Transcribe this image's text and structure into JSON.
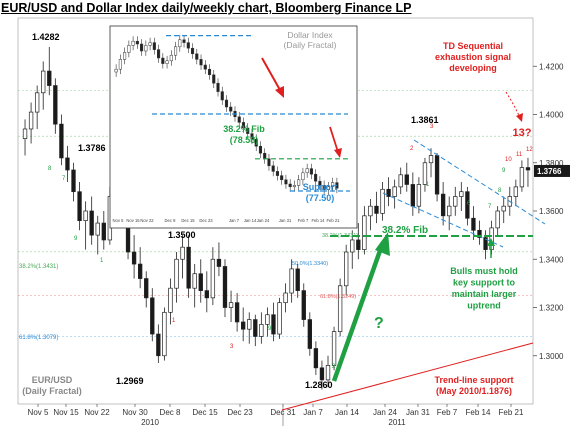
{
  "title": "EUR/USD and Dollar Index daily/weekly chart, Bloomberg Finance LP",
  "chart_data": {
    "type": "candlestick",
    "ylim": [
      1.28,
      1.44
    ],
    "ticks_y": [
      "1.4200",
      "1.4000",
      "1.3800",
      "1.3600",
      "1.3400",
      "1.3200",
      "1.3000"
    ],
    "x_ticks": [
      "Nov 5",
      "Nov 15",
      "Nov 22",
      "Nov 30",
      "Dec 8",
      "Dec 15",
      "Dec 23",
      "Dec 31",
      "Jan 7",
      "Jan 14",
      "Jan 24",
      "Jan 31",
      "Feb 7",
      "Feb 14",
      "Feb 21"
    ],
    "year_labels": [
      "2010",
      "2011"
    ],
    "last_price": "1.3766",
    "price_labels": {
      "high1": "1.4282",
      "p2": "1.3786",
      "p3": "1.3500",
      "low1": "1.2969",
      "low2": "1.2860",
      "high2": "1.3861"
    },
    "fib_levels": [
      "38.2%(1.3431)",
      "61.8%(1.3249)",
      "50.0%(1.3340)",
      "50.0%(1.3379)",
      "61.8%(1.3240)"
    ],
    "fib_label_left": [
      "38.2%(1.3431)",
      "61.8%(1.3079)"
    ],
    "annotations": {
      "td_sequential": [
        "TD Sequential",
        "exhaustion signal",
        "developing"
      ],
      "count_13": "13?",
      "fib_382": "38.2% Fib",
      "bulls": [
        "Bulls must hold",
        "key support to",
        "maintain larger",
        "uptrend"
      ],
      "question": "?",
      "trendline": [
        "Trend-line support",
        "(May 2010/1.1876)"
      ],
      "bottom_left": [
        "EUR/USD",
        "(Daily Fractal)"
      ]
    },
    "inset": {
      "title": [
        "Dollar Index",
        "(Daily Fractal)"
      ],
      "fib": [
        "38.2% Fib",
        "(78.58)"
      ],
      "support": [
        "Support",
        "(77.50)"
      ],
      "x_ticks": [
        "Nov 5",
        "Nov 15",
        "Nov 22",
        "Dec 8",
        "Dec 15",
        "Dec 23",
        "Jan 7",
        "Jan 14",
        "Jan 24",
        "Jan 31",
        "Feb 7",
        "Feb 14",
        "Feb 21"
      ]
    },
    "series": [
      {
        "x": "Oct 25",
        "o": 1.39,
        "h": 1.398,
        "l": 1.383,
        "c": 1.394
      },
      {
        "x": "Oct 27",
        "o": 1.394,
        "h": 1.405,
        "l": 1.388,
        "c": 1.401
      },
      {
        "x": "Oct 29",
        "o": 1.401,
        "h": 1.412,
        "l": 1.394,
        "c": 1.409
      },
      {
        "x": "Nov 1",
        "o": 1.409,
        "h": 1.422,
        "l": 1.402,
        "c": 1.418
      },
      {
        "x": "Nov 4",
        "o": 1.418,
        "h": 1.428,
        "l": 1.408,
        "c": 1.412
      },
      {
        "x": "Nov 5",
        "o": 1.412,
        "h": 1.415,
        "l": 1.392,
        "c": 1.396
      },
      {
        "x": "Nov 8",
        "o": 1.396,
        "h": 1.4,
        "l": 1.379,
        "c": 1.382
      },
      {
        "x": "Nov 9",
        "o": 1.382,
        "h": 1.387,
        "l": 1.372,
        "c": 1.377
      },
      {
        "x": "Nov 10",
        "o": 1.377,
        "h": 1.38,
        "l": 1.364,
        "c": 1.368
      },
      {
        "x": "Nov 11",
        "o": 1.368,
        "h": 1.372,
        "l": 1.352,
        "c": 1.356
      },
      {
        "x": "Nov 12",
        "o": 1.356,
        "h": 1.364,
        "l": 1.344,
        "c": 1.36
      },
      {
        "x": "Nov 15",
        "o": 1.36,
        "h": 1.366,
        "l": 1.346,
        "c": 1.35
      },
      {
        "x": "Nov 16",
        "o": 1.35,
        "h": 1.358,
        "l": 1.342,
        "c": 1.355
      },
      {
        "x": "Nov 17",
        "o": 1.355,
        "h": 1.36,
        "l": 1.344,
        "c": 1.348
      },
      {
        "x": "Nov 18",
        "o": 1.348,
        "h": 1.37,
        "l": 1.346,
        "c": 1.366
      },
      {
        "x": "Nov 19",
        "o": 1.366,
        "h": 1.375,
        "l": 1.36,
        "c": 1.371
      },
      {
        "x": "Nov 22",
        "o": 1.371,
        "h": 1.379,
        "l": 1.362,
        "c": 1.365
      },
      {
        "x": "Nov 23",
        "o": 1.365,
        "h": 1.368,
        "l": 1.34,
        "c": 1.343
      },
      {
        "x": "Nov 24",
        "o": 1.343,
        "h": 1.35,
        "l": 1.332,
        "c": 1.338
      },
      {
        "x": "Nov 25",
        "o": 1.338,
        "h": 1.345,
        "l": 1.328,
        "c": 1.332
      },
      {
        "x": "Nov 26",
        "o": 1.332,
        "h": 1.335,
        "l": 1.32,
        "c": 1.324
      },
      {
        "x": "Nov 29",
        "o": 1.324,
        "h": 1.328,
        "l": 1.306,
        "c": 1.309
      },
      {
        "x": "Nov 30",
        "o": 1.309,
        "h": 1.313,
        "l": 1.297,
        "c": 1.3
      },
      {
        "x": "Dec 1",
        "o": 1.3,
        "h": 1.32,
        "l": 1.298,
        "c": 1.318
      },
      {
        "x": "Dec 2",
        "o": 1.318,
        "h": 1.332,
        "l": 1.313,
        "c": 1.328
      },
      {
        "x": "Dec 3",
        "o": 1.328,
        "h": 1.343,
        "l": 1.322,
        "c": 1.34
      },
      {
        "x": "Dec 6",
        "o": 1.34,
        "h": 1.35,
        "l": 1.332,
        "c": 1.345
      },
      {
        "x": "Dec 7",
        "o": 1.345,
        "h": 1.35,
        "l": 1.324,
        "c": 1.328
      },
      {
        "x": "Dec 8",
        "o": 1.328,
        "h": 1.338,
        "l": 1.32,
        "c": 1.334
      },
      {
        "x": "Dec 9",
        "o": 1.334,
        "h": 1.34,
        "l": 1.322,
        "c": 1.327
      },
      {
        "x": "Dec 10",
        "o": 1.327,
        "h": 1.335,
        "l": 1.318,
        "c": 1.324
      },
      {
        "x": "Dec 13",
        "o": 1.324,
        "h": 1.345,
        "l": 1.321,
        "c": 1.34
      },
      {
        "x": "Dec 14",
        "o": 1.34,
        "h": 1.347,
        "l": 1.333,
        "c": 1.337
      },
      {
        "x": "Dec 15",
        "o": 1.337,
        "h": 1.34,
        "l": 1.316,
        "c": 1.32
      },
      {
        "x": "Dec 16",
        "o": 1.32,
        "h": 1.327,
        "l": 1.314,
        "c": 1.322
      },
      {
        "x": "Dec 17",
        "o": 1.322,
        "h": 1.326,
        "l": 1.31,
        "c": 1.314
      },
      {
        "x": "Dec 20",
        "o": 1.314,
        "h": 1.32,
        "l": 1.306,
        "c": 1.311
      },
      {
        "x": "Dec 21",
        "o": 1.311,
        "h": 1.318,
        "l": 1.305,
        "c": 1.315
      },
      {
        "x": "Dec 22",
        "o": 1.315,
        "h": 1.317,
        "l": 1.304,
        "c": 1.308
      },
      {
        "x": "Dec 23",
        "o": 1.308,
        "h": 1.318,
        "l": 1.305,
        "c": 1.313
      },
      {
        "x": "Dec 27",
        "o": 1.313,
        "h": 1.32,
        "l": 1.308,
        "c": 1.317
      },
      {
        "x": "Dec 28",
        "o": 1.317,
        "h": 1.322,
        "l": 1.306,
        "c": 1.309
      },
      {
        "x": "Dec 29",
        "o": 1.309,
        "h": 1.324,
        "l": 1.307,
        "c": 1.322
      },
      {
        "x": "Dec 30",
        "o": 1.322,
        "h": 1.33,
        "l": 1.318,
        "c": 1.326
      },
      {
        "x": "Dec 31",
        "o": 1.326,
        "h": 1.34,
        "l": 1.322,
        "c": 1.336
      },
      {
        "x": "Jan 3",
        "o": 1.336,
        "h": 1.338,
        "l": 1.324,
        "c": 1.327
      },
      {
        "x": "Jan 4",
        "o": 1.327,
        "h": 1.33,
        "l": 1.312,
        "c": 1.315
      },
      {
        "x": "Jan 5",
        "o": 1.315,
        "h": 1.318,
        "l": 1.3,
        "c": 1.303
      },
      {
        "x": "Jan 6",
        "o": 1.303,
        "h": 1.306,
        "l": 1.292,
        "c": 1.295
      },
      {
        "x": "Jan 7",
        "o": 1.295,
        "h": 1.298,
        "l": 1.286,
        "c": 1.29
      },
      {
        "x": "Jan 10",
        "o": 1.29,
        "h": 1.3,
        "l": 1.287,
        "c": 1.296
      },
      {
        "x": "Jan 11",
        "o": 1.296,
        "h": 1.312,
        "l": 1.294,
        "c": 1.31
      },
      {
        "x": "Jan 12",
        "o": 1.31,
        "h": 1.332,
        "l": 1.308,
        "c": 1.329
      },
      {
        "x": "Jan 13",
        "o": 1.329,
        "h": 1.346,
        "l": 1.325,
        "c": 1.343
      },
      {
        "x": "Jan 14",
        "o": 1.343,
        "h": 1.352,
        "l": 1.336,
        "c": 1.348
      },
      {
        "x": "Jan 17",
        "o": 1.348,
        "h": 1.355,
        "l": 1.34,
        "c": 1.344
      },
      {
        "x": "Jan 18",
        "o": 1.344,
        "h": 1.362,
        "l": 1.342,
        "c": 1.358
      },
      {
        "x": "Jan 19",
        "o": 1.358,
        "h": 1.365,
        "l": 1.352,
        "c": 1.362
      },
      {
        "x": "Jan 20",
        "o": 1.362,
        "h": 1.368,
        "l": 1.355,
        "c": 1.359
      },
      {
        "x": "Jan 21",
        "o": 1.359,
        "h": 1.372,
        "l": 1.356,
        "c": 1.369
      },
      {
        "x": "Jan 24",
        "o": 1.369,
        "h": 1.374,
        "l": 1.362,
        "c": 1.366
      },
      {
        "x": "Jan 25",
        "o": 1.366,
        "h": 1.373,
        "l": 1.361,
        "c": 1.37
      },
      {
        "x": "Jan 26",
        "o": 1.37,
        "h": 1.378,
        "l": 1.367,
        "c": 1.375
      },
      {
        "x": "Jan 27",
        "o": 1.375,
        "h": 1.38,
        "l": 1.368,
        "c": 1.371
      },
      {
        "x": "Jan 28",
        "o": 1.371,
        "h": 1.376,
        "l": 1.358,
        "c": 1.362
      },
      {
        "x": "Jan 31",
        "o": 1.362,
        "h": 1.374,
        "l": 1.359,
        "c": 1.371
      },
      {
        "x": "Feb 1",
        "o": 1.371,
        "h": 1.382,
        "l": 1.368,
        "c": 1.38
      },
      {
        "x": "Feb 2",
        "o": 1.38,
        "h": 1.386,
        "l": 1.374,
        "c": 1.383
      },
      {
        "x": "Feb 3",
        "o": 1.383,
        "h": 1.384,
        "l": 1.364,
        "c": 1.367
      },
      {
        "x": "Feb 4",
        "o": 1.367,
        "h": 1.372,
        "l": 1.354,
        "c": 1.358
      },
      {
        "x": "Feb 7",
        "o": 1.358,
        "h": 1.366,
        "l": 1.352,
        "c": 1.362
      },
      {
        "x": "Feb 8",
        "o": 1.362,
        "h": 1.37,
        "l": 1.358,
        "c": 1.366
      },
      {
        "x": "Feb 9",
        "o": 1.366,
        "h": 1.372,
        "l": 1.36,
        "c": 1.368
      },
      {
        "x": "Feb 10",
        "o": 1.368,
        "h": 1.37,
        "l": 1.354,
        "c": 1.357
      },
      {
        "x": "Feb 11",
        "o": 1.357,
        "h": 1.362,
        "l": 1.348,
        "c": 1.352
      },
      {
        "x": "Feb 14",
        "o": 1.352,
        "h": 1.356,
        "l": 1.346,
        "c": 1.349
      },
      {
        "x": "Feb 15",
        "o": 1.349,
        "h": 1.352,
        "l": 1.34,
        "c": 1.344
      },
      {
        "x": "Feb 16",
        "o": 1.344,
        "h": 1.356,
        "l": 1.342,
        "c": 1.353
      },
      {
        "x": "Feb 17",
        "o": 1.353,
        "h": 1.362,
        "l": 1.35,
        "c": 1.36
      },
      {
        "x": "Feb 18",
        "o": 1.36,
        "h": 1.366,
        "l": 1.355,
        "c": 1.362
      },
      {
        "x": "Feb 21",
        "o": 1.362,
        "h": 1.37,
        "l": 1.358,
        "c": 1.366
      },
      {
        "x": "Feb 22",
        "o": 1.366,
        "h": 1.373,
        "l": 1.362,
        "c": 1.37
      },
      {
        "x": "Feb 23",
        "o": 1.37,
        "h": 1.381,
        "l": 1.368,
        "c": 1.378
      },
      {
        "x": "Feb 24",
        "o": 1.378,
        "h": 1.382,
        "l": 1.37,
        "c": 1.377
      }
    ],
    "inset_series": [
      86.2,
      86.9,
      87.4,
      87.9,
      88.2,
      88.0,
      87.5,
      87.9,
      88.1,
      87.6,
      87.0,
      86.6,
      86.8,
      87.2,
      87.8,
      88.3,
      88.1,
      87.7,
      87.3,
      86.9,
      86.5,
      86.2,
      85.8,
      85.2,
      84.6,
      84.0,
      83.5,
      83.2,
      82.8,
      82.4,
      82.0,
      81.6,
      81.2,
      80.7,
      80.2,
      79.8,
      79.3,
      78.9,
      78.6,
      78.3,
      78.0,
      77.8,
      77.9,
      78.3,
      78.8,
      79.1,
      78.7,
      78.2,
      77.9,
      77.6,
      77.8,
      78.1,
      77.7
    ],
    "inset_ylim": [
      76.0,
      89.0
    ],
    "colors": {
      "bull": "#ffffff",
      "bear": "#1a1a1a",
      "green": "#1fa043",
      "red": "#e02020",
      "blue": "#2a8ad4",
      "fib_red": "#e45a5a",
      "fib_green": "#4aa85a"
    }
  }
}
